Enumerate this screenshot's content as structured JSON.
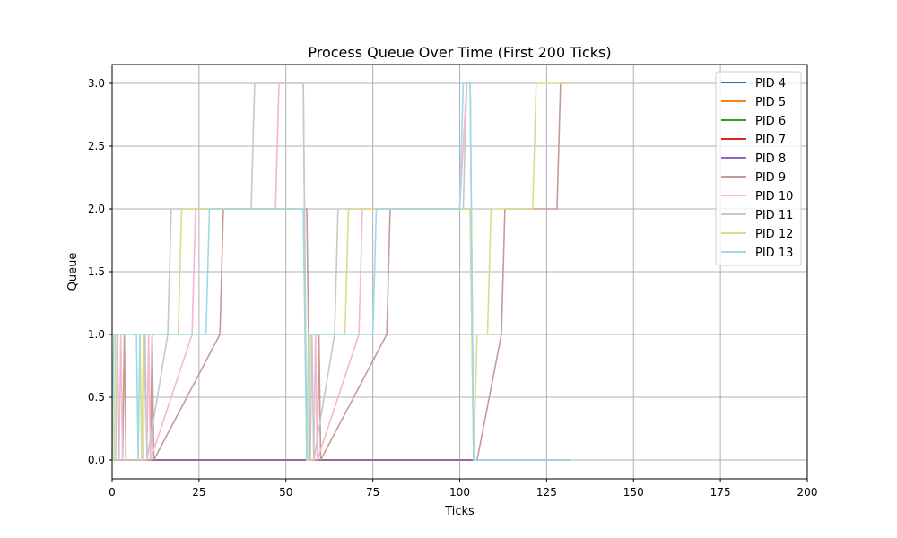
{
  "chart_data": {
    "type": "line",
    "title": "Process Queue Over Time (First 200 Ticks)",
    "xlabel": "Ticks",
    "ylabel": "Queue",
    "xlim": [
      0,
      200
    ],
    "ylim": [
      -0.15,
      3.15
    ],
    "xticks": [
      0,
      25,
      50,
      75,
      100,
      125,
      150,
      175,
      200
    ],
    "yticks": [
      0.0,
      0.5,
      1.0,
      1.5,
      2.0,
      2.5,
      3.0
    ],
    "xtick_labels": [
      "0",
      "25",
      "50",
      "75",
      "100",
      "125",
      "150",
      "175",
      "200"
    ],
    "ytick_labels": [
      "0.0",
      "0.5",
      "1.0",
      "1.5",
      "2.0",
      "2.5",
      "3.0"
    ],
    "grid": true,
    "legend_position": "top-right",
    "series": [
      {
        "name": "PID 4",
        "color": "#1f77b4",
        "x": [
          0,
          132
        ],
        "y": [
          0,
          0
        ]
      },
      {
        "name": "PID 5",
        "color": "#ff7f0e",
        "x": [
          0,
          132
        ],
        "y": [
          0,
          0
        ]
      },
      {
        "name": "PID 6",
        "color": "#2ca02c",
        "x": [
          0,
          132
        ],
        "y": [
          0,
          0
        ]
      },
      {
        "name": "PID 7",
        "color": "#d62728",
        "x": [
          0,
          132
        ],
        "y": [
          0,
          0
        ]
      },
      {
        "name": "PID 8",
        "color": "#9467bd",
        "x": [
          0,
          132
        ],
        "y": [
          0,
          0
        ]
      },
      {
        "name": "PID 9",
        "color": "#c49c94",
        "x": [
          0,
          3,
          3.5,
          4,
          11,
          11.5,
          12,
          31,
          32,
          56,
          57,
          59,
          59.5,
          60,
          79,
          80,
          103,
          104,
          105,
          112,
          113,
          128,
          129,
          132
        ],
        "y": [
          0,
          0,
          1,
          0,
          0,
          1,
          0,
          1,
          2,
          2,
          0,
          0,
          1,
          0,
          1,
          2,
          2,
          0,
          0,
          1,
          2,
          2,
          3,
          3
        ]
      },
      {
        "name": "PID 10",
        "color": "#f7b6d2",
        "x": [
          0,
          2,
          2.5,
          3,
          10,
          10.5,
          11,
          23,
          24,
          47,
          48,
          55,
          56,
          58,
          58.5,
          59,
          71,
          72,
          100,
          102,
          103,
          104,
          132
        ],
        "y": [
          0,
          0,
          1,
          0,
          0,
          1,
          0,
          1,
          2,
          2,
          3,
          3,
          0,
          0,
          1,
          0,
          1,
          2,
          2,
          3,
          3,
          0,
          0
        ]
      },
      {
        "name": "PID 11",
        "color": "#c7c7c7",
        "x": [
          0,
          1,
          1.5,
          2,
          9,
          9.5,
          10,
          16,
          17,
          40,
          41,
          55,
          56,
          57,
          57.5,
          58,
          64,
          65,
          101,
          102,
          103,
          104,
          132
        ],
        "y": [
          0,
          0,
          1,
          0,
          0,
          1,
          0,
          1,
          2,
          2,
          3,
          3,
          0,
          0,
          1,
          0,
          1,
          2,
          2,
          3,
          3,
          0,
          0
        ]
      },
      {
        "name": "PID 12",
        "color": "#dbdb8d",
        "x": [
          0,
          0.5,
          1,
          8,
          8.5,
          9,
          19,
          20,
          55,
          56,
          56.5,
          57,
          67,
          68,
          103,
          104,
          105,
          108,
          109,
          121,
          122,
          132
        ],
        "y": [
          0,
          0,
          1,
          1,
          0,
          1,
          1,
          2,
          2,
          0,
          0,
          1,
          1,
          2,
          2,
          0,
          1,
          1,
          2,
          2,
          3,
          3
        ]
      },
      {
        "name": "PID 13",
        "color": "#9edae5",
        "x": [
          0,
          0.5,
          1,
          7,
          7.5,
          8,
          27,
          28,
          55,
          56,
          56.5,
          57,
          75,
          76,
          100,
          101,
          103,
          104,
          132
        ],
        "y": [
          0,
          1,
          1,
          1,
          0,
          1,
          1,
          2,
          2,
          0,
          1,
          1,
          1,
          2,
          2,
          3,
          3,
          0,
          0
        ]
      }
    ]
  }
}
